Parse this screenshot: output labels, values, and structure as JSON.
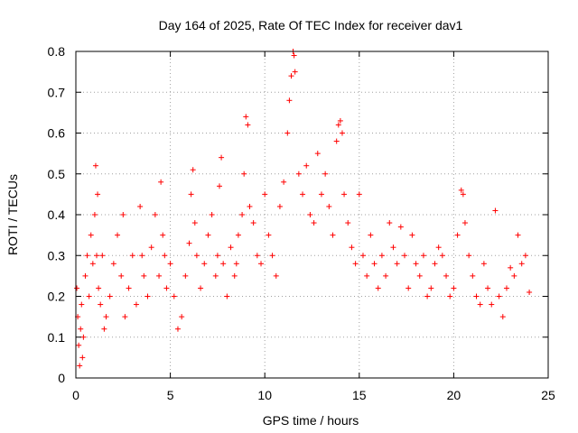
{
  "chart_data": {
    "type": "scatter",
    "title": "Day 164 of 2025, Rate Of TEC Index for receiver dav1",
    "xlabel": "GPS time / hours",
    "ylabel": "ROTI / TECUs",
    "xlim": [
      0,
      25
    ],
    "ylim": [
      0,
      0.8
    ],
    "x_ticks": [
      0,
      5,
      10,
      15,
      20,
      25
    ],
    "y_ticks": [
      0,
      0.1,
      0.2,
      0.3,
      0.4,
      0.5,
      0.6,
      0.7,
      0.8
    ],
    "x_tick_labels": [
      "0",
      "5",
      "10",
      "15",
      "20",
      "25"
    ],
    "y_tick_labels": [
      "0",
      "0.1",
      "0.2",
      "0.3",
      "0.4",
      "0.5",
      "0.6",
      "0.7",
      "0.8"
    ],
    "grid": true,
    "marker": "+",
    "color": "#ff0000",
    "series": [
      {
        "x": [
          0.05,
          0.1,
          0.15,
          0.2,
          0.25,
          0.3,
          0.35,
          0.4,
          0.5,
          0.6,
          0.7,
          0.8,
          0.9,
          1.0,
          1.05,
          1.1,
          1.15,
          1.2,
          1.3,
          1.4,
          1.5,
          1.6,
          1.8,
          2.0,
          2.2,
          2.4,
          2.5,
          2.6,
          2.8,
          3.0,
          3.2,
          3.4,
          3.5,
          3.6,
          3.8,
          4.0,
          4.2,
          4.4,
          4.5,
          4.6,
          4.7,
          4.8,
          5.0,
          5.2,
          5.4,
          5.6,
          5.8,
          6.0,
          6.1,
          6.2,
          6.3,
          6.4,
          6.6,
          6.8,
          7.0,
          7.2,
          7.4,
          7.5,
          7.6,
          7.7,
          7.8,
          8.0,
          8.2,
          8.4,
          8.5,
          8.6,
          8.8,
          8.9,
          9.0,
          9.1,
          9.2,
          9.4,
          9.6,
          9.8,
          10.0,
          10.2,
          10.4,
          10.6,
          10.8,
          11.0,
          11.2,
          11.3,
          11.4,
          11.5,
          11.55,
          11.6,
          11.8,
          12.0,
          12.2,
          12.4,
          12.6,
          12.8,
          13.0,
          13.2,
          13.4,
          13.6,
          13.8,
          13.9,
          14.0,
          14.1,
          14.2,
          14.4,
          14.6,
          14.8,
          15.0,
          15.2,
          15.4,
          15.6,
          15.8,
          16.0,
          16.2,
          16.4,
          16.6,
          16.8,
          17.0,
          17.2,
          17.4,
          17.6,
          17.8,
          18.0,
          18.2,
          18.4,
          18.6,
          18.8,
          19.0,
          19.2,
          19.4,
          19.6,
          19.8,
          20.0,
          20.2,
          20.4,
          20.5,
          20.6,
          20.8,
          21.0,
          21.2,
          21.4,
          21.6,
          21.8,
          22.0,
          22.2,
          22.4,
          22.6,
          22.8,
          23.0,
          23.2,
          23.4,
          23.6,
          23.8,
          24.0
        ],
        "y": [
          0.22,
          0.15,
          0.08,
          0.03,
          0.12,
          0.18,
          0.05,
          0.1,
          0.25,
          0.3,
          0.2,
          0.35,
          0.28,
          0.4,
          0.52,
          0.3,
          0.45,
          0.22,
          0.18,
          0.3,
          0.12,
          0.15,
          0.2,
          0.28,
          0.35,
          0.25,
          0.4,
          0.15,
          0.22,
          0.3,
          0.18,
          0.42,
          0.3,
          0.25,
          0.2,
          0.32,
          0.4,
          0.25,
          0.48,
          0.35,
          0.3,
          0.22,
          0.28,
          0.2,
          0.12,
          0.15,
          0.25,
          0.33,
          0.45,
          0.51,
          0.38,
          0.3,
          0.22,
          0.28,
          0.35,
          0.4,
          0.25,
          0.3,
          0.47,
          0.54,
          0.28,
          0.2,
          0.32,
          0.25,
          0.28,
          0.35,
          0.4,
          0.5,
          0.64,
          0.62,
          0.42,
          0.38,
          0.3,
          0.28,
          0.45,
          0.35,
          0.3,
          0.25,
          0.42,
          0.48,
          0.6,
          0.68,
          0.74,
          0.8,
          0.79,
          0.75,
          0.5,
          0.45,
          0.52,
          0.4,
          0.38,
          0.55,
          0.45,
          0.5,
          0.42,
          0.35,
          0.58,
          0.62,
          0.63,
          0.6,
          0.45,
          0.38,
          0.32,
          0.28,
          0.45,
          0.3,
          0.25,
          0.35,
          0.28,
          0.22,
          0.3,
          0.25,
          0.38,
          0.32,
          0.28,
          0.37,
          0.3,
          0.22,
          0.35,
          0.28,
          0.25,
          0.3,
          0.2,
          0.22,
          0.28,
          0.32,
          0.3,
          0.25,
          0.2,
          0.22,
          0.35,
          0.46,
          0.45,
          0.38,
          0.3,
          0.25,
          0.2,
          0.18,
          0.28,
          0.22,
          0.18,
          0.41,
          0.2,
          0.15,
          0.22,
          0.27,
          0.25,
          0.35,
          0.28,
          0.3,
          0.21
        ]
      }
    ]
  }
}
